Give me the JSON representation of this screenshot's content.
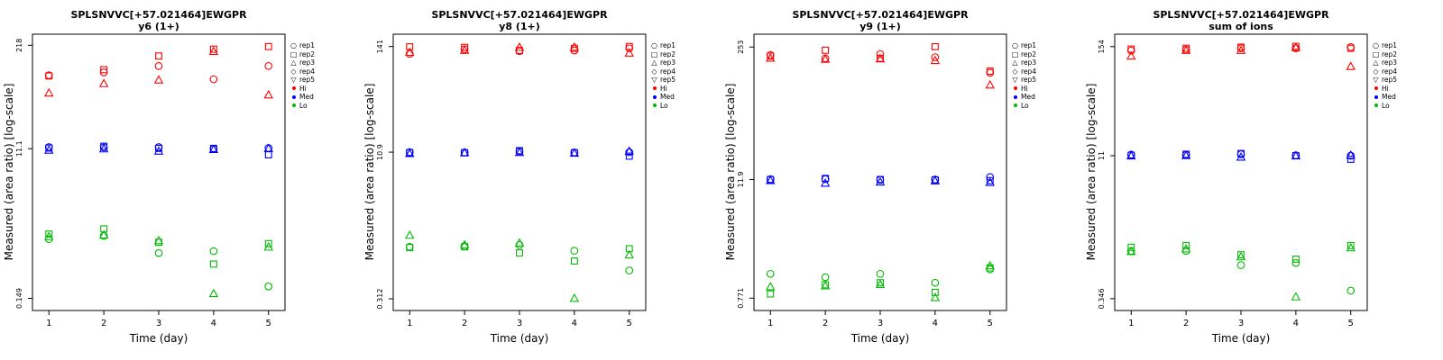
{
  "page": {
    "background": "#ffffff"
  },
  "rep_shapes": {
    "1": "circle",
    "2": "square",
    "3": "triangle-up",
    "4": "diamond",
    "5": "triangle-down"
  },
  "legend": {
    "shape_items": [
      {
        "label": "rep1",
        "shape": "circle"
      },
      {
        "label": "rep2",
        "shape": "square"
      },
      {
        "label": "rep3",
        "shape": "triangle-up"
      },
      {
        "label": "rep4",
        "shape": "diamond"
      },
      {
        "label": "rep5",
        "shape": "triangle-down"
      }
    ],
    "color_items": [
      {
        "label": "Hi",
        "color": "#ff0000"
      },
      {
        "label": "Med",
        "color": "#0000ff"
      },
      {
        "label": "Lo",
        "color": "#00bb00"
      }
    ]
  },
  "chart_data": [
    {
      "type": "scatter",
      "title": "SPLSNVVC[+57.021464]EWGPR",
      "subtitle": "y6 (1+)",
      "xlabel": "Time (day)",
      "ylabel": "Measured (area ratio) [log-scale]",
      "yscale": "log",
      "xlim": [
        0.7,
        5.3
      ],
      "x_ticks": [
        1,
        2,
        3,
        4,
        5
      ],
      "ylim": [
        0.105,
        300
      ],
      "y_ticks": [
        {
          "value": 0.149,
          "label": "0.149"
        },
        {
          "value": 11.1,
          "label": "11.1"
        },
        {
          "value": 218,
          "label": "218"
        }
      ],
      "point_format": [
        "day",
        "rep",
        "value"
      ],
      "series": [
        {
          "name": "Hi",
          "color": "#ff0000",
          "points": [
            [
              1,
              1,
              92
            ],
            [
              1,
              2,
              90
            ],
            [
              1,
              3,
              55
            ],
            [
              2,
              1,
              100
            ],
            [
              2,
              2,
              108
            ],
            [
              2,
              3,
              72
            ],
            [
              3,
              1,
              120
            ],
            [
              3,
              2,
              160
            ],
            [
              3,
              3,
              80
            ],
            [
              4,
              1,
              82
            ],
            [
              4,
              2,
              195
            ],
            [
              4,
              3,
              182
            ],
            [
              5,
              1,
              120
            ],
            [
              5,
              2,
              210
            ],
            [
              5,
              3,
              52
            ]
          ]
        },
        {
          "name": "Med",
          "color": "#0000ff",
          "points": [
            [
              1,
              1,
              11.6
            ],
            [
              1,
              2,
              11.3
            ],
            [
              1,
              3,
              10.6
            ],
            [
              2,
              1,
              11.5
            ],
            [
              2,
              2,
              11.9
            ],
            [
              2,
              3,
              11.0
            ],
            [
              3,
              1,
              11.6
            ],
            [
              3,
              2,
              11.2
            ],
            [
              3,
              3,
              10.3
            ],
            [
              4,
              1,
              11.0
            ],
            [
              4,
              2,
              11.2
            ],
            [
              4,
              3,
              10.8
            ],
            [
              5,
              1,
              11.3
            ],
            [
              5,
              2,
              9.3
            ],
            [
              5,
              3,
              11.1
            ]
          ]
        },
        {
          "name": "Lo",
          "color": "#00bb00",
          "points": [
            [
              1,
              1,
              0.82
            ],
            [
              1,
              2,
              0.95
            ],
            [
              1,
              3,
              0.88
            ],
            [
              2,
              1,
              0.9
            ],
            [
              2,
              2,
              1.1
            ],
            [
              2,
              3,
              0.92
            ],
            [
              3,
              1,
              0.55
            ],
            [
              3,
              2,
              0.75
            ],
            [
              3,
              3,
              0.78
            ],
            [
              4,
              1,
              0.58
            ],
            [
              4,
              2,
              0.4
            ],
            [
              4,
              3,
              0.17
            ],
            [
              5,
              1,
              0.21
            ],
            [
              5,
              2,
              0.72
            ],
            [
              5,
              3,
              0.65
            ]
          ]
        }
      ]
    },
    {
      "type": "scatter",
      "title": "SPLSNVVC[+57.021464]EWGPR",
      "subtitle": "y8 (1+)",
      "xlabel": "Time (day)",
      "ylabel": "Measured (area ratio) [log-scale]",
      "yscale": "log",
      "xlim": [
        0.7,
        5.3
      ],
      "x_ticks": [
        1,
        2,
        3,
        4,
        5
      ],
      "ylim": [
        0.235,
        190
      ],
      "y_ticks": [
        {
          "value": 0.312,
          "label": "0.312"
        },
        {
          "value": 10.9,
          "label": "10.9"
        },
        {
          "value": 141,
          "label": "141"
        }
      ],
      "point_format": [
        "day",
        "rep",
        "value"
      ],
      "series": [
        {
          "name": "Hi",
          "color": "#ff0000",
          "points": [
            [
              1,
              1,
              118
            ],
            [
              1,
              2,
              140
            ],
            [
              1,
              3,
              122
            ],
            [
              2,
              1,
              132
            ],
            [
              2,
              2,
              138
            ],
            [
              2,
              3,
              128
            ],
            [
              3,
              1,
              126
            ],
            [
              3,
              2,
              128
            ],
            [
              3,
              3,
              138
            ],
            [
              4,
              1,
              128
            ],
            [
              4,
              2,
              135
            ],
            [
              4,
              3,
              138
            ],
            [
              5,
              1,
              135
            ],
            [
              5,
              2,
              141
            ],
            [
              5,
              3,
              120
            ]
          ]
        },
        {
          "name": "Med",
          "color": "#0000ff",
          "points": [
            [
              1,
              1,
              10.9
            ],
            [
              1,
              2,
              10.8
            ],
            [
              1,
              3,
              10.5
            ],
            [
              2,
              1,
              10.8
            ],
            [
              2,
              2,
              10.75
            ],
            [
              2,
              3,
              10.7
            ],
            [
              3,
              1,
              11.1
            ],
            [
              3,
              2,
              11.3
            ],
            [
              3,
              3,
              10.8
            ],
            [
              4,
              1,
              10.8
            ],
            [
              4,
              2,
              10.75
            ],
            [
              4,
              3,
              10.6
            ],
            [
              5,
              1,
              10.9
            ],
            [
              5,
              2,
              9.9
            ],
            [
              5,
              3,
              11.1
            ]
          ]
        },
        {
          "name": "Lo",
          "color": "#00bb00",
          "points": [
            [
              1,
              1,
              1.1
            ],
            [
              1,
              2,
              1.08
            ],
            [
              1,
              3,
              1.45
            ],
            [
              2,
              1,
              1.12
            ],
            [
              2,
              2,
              1.1
            ],
            [
              2,
              3,
              1.15
            ],
            [
              3,
              1,
              1.15
            ],
            [
              3,
              2,
              0.95
            ],
            [
              3,
              3,
              1.2
            ],
            [
              4,
              1,
              1.0
            ],
            [
              4,
              2,
              0.78
            ],
            [
              4,
              3,
              0.315
            ],
            [
              5,
              1,
              0.62
            ],
            [
              5,
              2,
              1.05
            ],
            [
              5,
              3,
              0.9
            ]
          ]
        }
      ]
    },
    {
      "type": "scatter",
      "title": "SPLSNVVC[+57.021464]EWGPR",
      "subtitle": "y9 (1+)",
      "xlabel": "Time (day)",
      "ylabel": "Measured (area ratio) [log-scale]",
      "yscale": "log",
      "xlim": [
        0.7,
        5.3
      ],
      "x_ticks": [
        1,
        2,
        3,
        4,
        5
      ],
      "ylim": [
        0.58,
        340
      ],
      "y_ticks": [
        {
          "value": 0.771,
          "label": "0.771"
        },
        {
          "value": 11.9,
          "label": "11.9"
        },
        {
          "value": 253,
          "label": "253"
        }
      ],
      "point_format": [
        "day",
        "rep",
        "value"
      ],
      "series": [
        {
          "name": "Hi",
          "color": "#ff0000",
          "points": [
            [
              1,
              1,
              210
            ],
            [
              1,
              2,
              205
            ],
            [
              1,
              3,
              195
            ],
            [
              2,
              1,
              195
            ],
            [
              2,
              2,
              235
            ],
            [
              2,
              3,
              190
            ],
            [
              3,
              1,
              215
            ],
            [
              3,
              2,
              195
            ],
            [
              3,
              3,
              192
            ],
            [
              4,
              1,
              200
            ],
            [
              4,
              2,
              255
            ],
            [
              4,
              3,
              185
            ],
            [
              5,
              1,
              140
            ],
            [
              5,
              2,
              145
            ],
            [
              5,
              3,
              105
            ]
          ]
        },
        {
          "name": "Med",
          "color": "#0000ff",
          "points": [
            [
              1,
              1,
              12.0
            ],
            [
              1,
              2,
              11.9
            ],
            [
              1,
              3,
              11.6
            ],
            [
              2,
              1,
              12.0
            ],
            [
              2,
              2,
              12.2
            ],
            [
              2,
              3,
              10.9
            ],
            [
              3,
              1,
              11.8
            ],
            [
              3,
              2,
              11.9
            ],
            [
              3,
              3,
              11.2
            ],
            [
              4,
              1,
              11.9
            ],
            [
              4,
              2,
              11.8
            ],
            [
              4,
              3,
              11.5
            ],
            [
              5,
              1,
              12.6
            ],
            [
              5,
              2,
              11.6
            ],
            [
              5,
              3,
              11.1
            ]
          ]
        },
        {
          "name": "Lo",
          "color": "#00bb00",
          "points": [
            [
              1,
              1,
              1.35
            ],
            [
              1,
              2,
              0.85
            ],
            [
              1,
              3,
              1.0
            ],
            [
              2,
              1,
              1.25
            ],
            [
              2,
              2,
              1.05
            ],
            [
              2,
              3,
              1.02
            ],
            [
              3,
              1,
              1.35
            ],
            [
              3,
              2,
              1.1
            ],
            [
              3,
              3,
              1.05
            ],
            [
              4,
              1,
              1.1
            ],
            [
              4,
              2,
              0.88
            ],
            [
              4,
              3,
              0.78
            ],
            [
              5,
              1,
              1.5
            ],
            [
              5,
              2,
              1.55
            ],
            [
              5,
              3,
              1.62
            ]
          ]
        }
      ]
    },
    {
      "type": "scatter",
      "title": "SPLSNVVC[+57.021464]EWGPR",
      "subtitle": "sum of ions",
      "xlabel": "Time (day)",
      "ylabel": "Measured (area ratio) [log-scale]",
      "yscale": "log",
      "xlim": [
        0.7,
        5.3
      ],
      "x_ticks": [
        1,
        2,
        3,
        4,
        5
      ],
      "ylim": [
        0.26,
        208
      ],
      "y_ticks": [
        {
          "value": 0.346,
          "label": "0.346"
        },
        {
          "value": 11,
          "label": "11"
        },
        {
          "value": 154,
          "label": "154"
        }
      ],
      "point_format": [
        "day",
        "rep",
        "value"
      ],
      "series": [
        {
          "name": "Hi",
          "color": "#ff0000",
          "points": [
            [
              1,
              1,
              140
            ],
            [
              1,
              2,
              145
            ],
            [
              1,
              3,
              122
            ],
            [
              2,
              1,
              143
            ],
            [
              2,
              2,
              148
            ],
            [
              2,
              3,
              140
            ],
            [
              3,
              1,
              148
            ],
            [
              3,
              2,
              152
            ],
            [
              3,
              3,
              140
            ],
            [
              4,
              1,
              148
            ],
            [
              4,
              2,
              155
            ],
            [
              4,
              3,
              150
            ],
            [
              5,
              1,
              152
            ],
            [
              5,
              2,
              148
            ],
            [
              5,
              3,
              95
            ]
          ]
        },
        {
          "name": "Med",
          "color": "#0000ff",
          "points": [
            [
              1,
              1,
              11.3
            ],
            [
              1,
              2,
              11.1
            ],
            [
              1,
              3,
              10.9
            ],
            [
              2,
              1,
              11.2
            ],
            [
              2,
              2,
              11.4
            ],
            [
              2,
              3,
              11.0
            ],
            [
              3,
              1,
              11.4
            ],
            [
              3,
              2,
              11.6
            ],
            [
              3,
              3,
              10.6
            ],
            [
              4,
              1,
              11.1
            ],
            [
              4,
              2,
              11.0
            ],
            [
              4,
              3,
              10.9
            ],
            [
              5,
              1,
              11.0
            ],
            [
              5,
              2,
              10.1
            ],
            [
              5,
              3,
              11.1
            ]
          ]
        },
        {
          "name": "Lo",
          "color": "#00bb00",
          "points": [
            [
              1,
              1,
              1.1
            ],
            [
              1,
              2,
              1.2
            ],
            [
              1,
              3,
              1.08
            ],
            [
              2,
              1,
              1.1
            ],
            [
              2,
              2,
              1.25
            ],
            [
              2,
              3,
              1.15
            ],
            [
              3,
              1,
              0.78
            ],
            [
              3,
              2,
              1.0
            ],
            [
              3,
              3,
              0.95
            ],
            [
              4,
              1,
              0.82
            ],
            [
              4,
              2,
              0.9
            ],
            [
              4,
              3,
              0.36
            ],
            [
              5,
              1,
              0.42
            ],
            [
              5,
              2,
              1.25
            ],
            [
              5,
              3,
              1.18
            ]
          ]
        }
      ]
    }
  ]
}
